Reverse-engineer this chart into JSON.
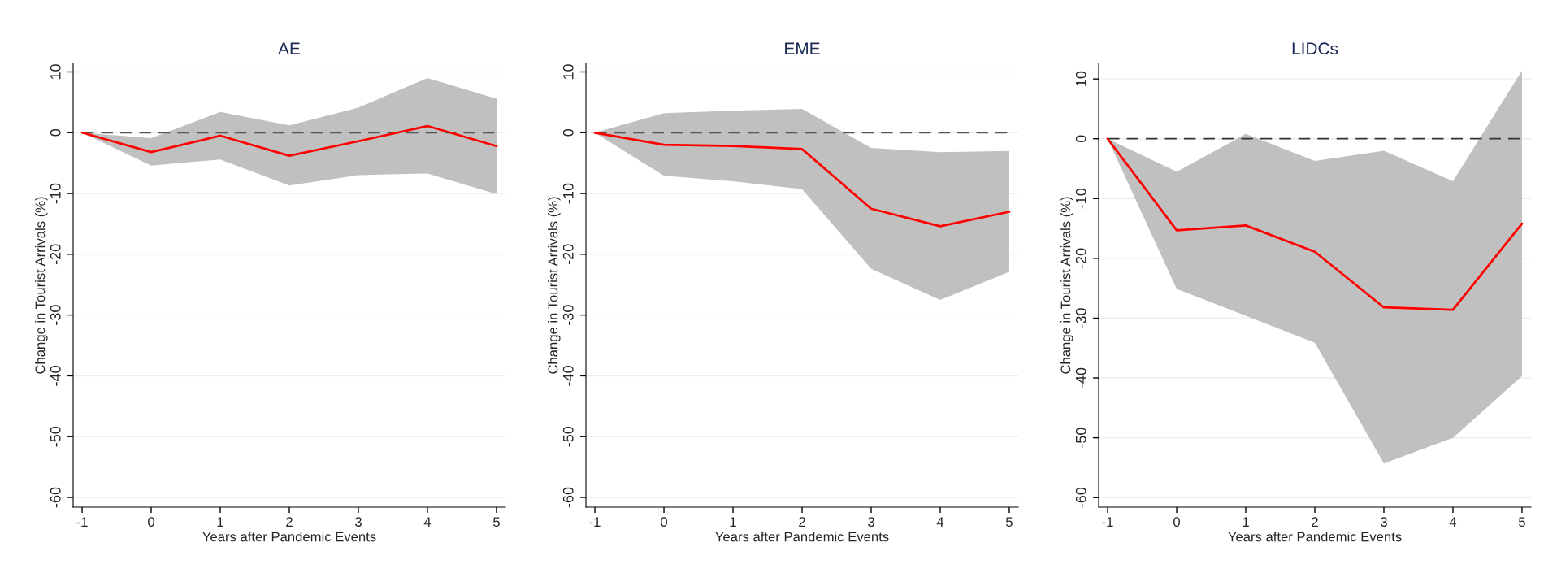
{
  "chart_data": [
    {
      "type": "line",
      "title": "AE",
      "xlabel": "Years after Pandemic Events",
      "ylabel": "Change in Tourist Arrivals (%)",
      "x": [
        -1,
        0,
        1,
        2,
        3,
        4,
        5
      ],
      "xlim": [
        -1.13,
        5.13
      ],
      "xticks": [
        -1,
        0,
        1,
        2,
        3,
        4,
        5
      ],
      "ylim": [
        -61.6,
        11.4
      ],
      "yticks": [
        -60,
        -50,
        -40,
        -30,
        -20,
        -10,
        0,
        10
      ],
      "grid": "y",
      "series": [
        {
          "color": "#ff0000",
          "values": [
            0,
            -3.2,
            -0.5,
            -3.8,
            -1.4,
            1.1,
            -2.2
          ],
          "lower": [
            0,
            -5.4,
            -4.4,
            -8.7,
            -7.0,
            -6.7,
            -10.1
          ],
          "upper": [
            0,
            -0.9,
            3.4,
            1.2,
            4.1,
            9.0,
            5.6
          ]
        }
      ],
      "ref_lines": [
        {
          "axis": "y",
          "value": 0,
          "color": "#555555",
          "line_style": "dashed"
        }
      ]
    },
    {
      "type": "line",
      "title": "EME",
      "xlabel": "Years after Pandemic Events",
      "ylabel": "Change in Tourist Arrivals (%)",
      "x": [
        -1,
        0,
        1,
        2,
        3,
        4,
        5
      ],
      "xlim": [
        -1.13,
        5.13
      ],
      "xticks": [
        -1,
        0,
        1,
        2,
        3,
        4,
        5
      ],
      "ylim": [
        -61.6,
        11.4
      ],
      "yticks": [
        -60,
        -50,
        -40,
        -30,
        -20,
        -10,
        0,
        10
      ],
      "grid": "y",
      "series": [
        {
          "color": "#ff0000",
          "values": [
            0,
            -2.0,
            -2.2,
            -2.7,
            -12.5,
            -15.4,
            -13.0
          ],
          "lower": [
            0,
            -7.1,
            -8.0,
            -9.3,
            -22.4,
            -27.5,
            -22.9
          ],
          "upper": [
            0,
            3.2,
            3.6,
            3.9,
            -2.5,
            -3.2,
            -3.0
          ]
        }
      ],
      "ref_lines": [
        {
          "axis": "y",
          "value": 0,
          "color": "#555555",
          "line_style": "dashed"
        }
      ]
    },
    {
      "type": "line",
      "title": "LIDCs",
      "xlabel": "Years after Pandemic Events",
      "ylabel": "Change in Tourist Arrivals (%)",
      "x": [
        -1,
        0,
        1,
        2,
        3,
        4,
        5
      ],
      "xlim": [
        -1.13,
        5.13
      ],
      "xticks": [
        -1,
        0,
        1,
        2,
        3,
        4,
        5
      ],
      "ylim": [
        -61.6,
        12.6
      ],
      "yticks": [
        -60,
        -50,
        -40,
        -30,
        -20,
        -10,
        0,
        10
      ],
      "grid": "y",
      "series": [
        {
          "color": "#ff0000",
          "values": [
            0,
            -15.3,
            -14.5,
            -18.9,
            -28.2,
            -28.6,
            -14.2
          ],
          "lower": [
            0,
            -25.1,
            -29.6,
            -34.1,
            -54.3,
            -50.0,
            -39.7
          ],
          "upper": [
            0,
            -5.5,
            0.8,
            -3.7,
            -2.0,
            -7.1,
            11.4
          ]
        }
      ],
      "ref_lines": [
        {
          "axis": "y",
          "value": 0,
          "color": "#333333",
          "line_style": "dashed"
        }
      ]
    }
  ]
}
